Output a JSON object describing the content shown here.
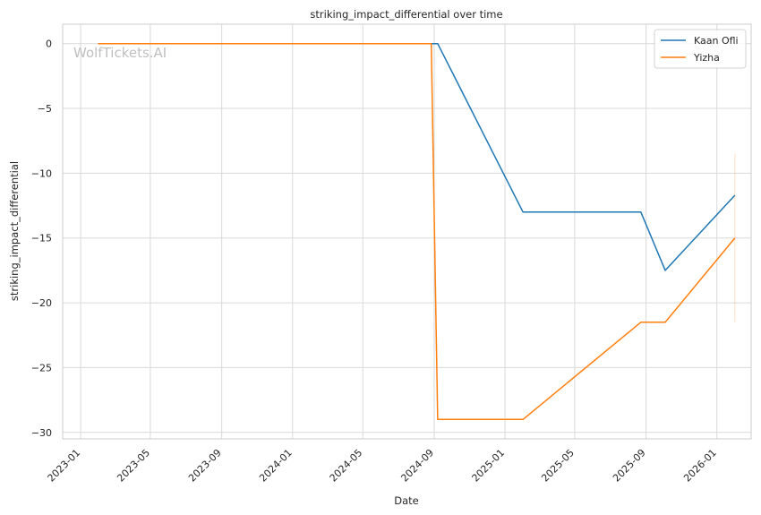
{
  "chart_data": {
    "type": "line",
    "title": "striking_impact_differential over time",
    "xlabel": "Date",
    "ylabel": "striking_impact_differential",
    "xlim": [
      "2022-12-01",
      "2026-03-01"
    ],
    "ylim": [
      -30.5,
      1.5
    ],
    "x_ticks": [
      "2023-01",
      "2023-05",
      "2023-09",
      "2024-01",
      "2024-05",
      "2024-09",
      "2025-01",
      "2025-05",
      "2025-09",
      "2026-01"
    ],
    "y_ticks": [
      0,
      -5,
      -10,
      -15,
      -20,
      -25,
      -30
    ],
    "y_tick_labels": [
      "0",
      "−5",
      "−10",
      "−15",
      "−20",
      "−25",
      "−30"
    ],
    "grid": true,
    "legend_position": "top-right",
    "watermark": "WolfTickets.AI",
    "series": [
      {
        "name": "Kaan Ofli",
        "color": "#1f77b4",
        "points": [
          {
            "x": "2023-01-31",
            "y": 0
          },
          {
            "x": "2024-08-27",
            "y": 0
          },
          {
            "x": "2024-09-07",
            "y": 0
          },
          {
            "x": "2025-02-01",
            "y": -13
          },
          {
            "x": "2025-08-23",
            "y": -13
          },
          {
            "x": "2025-10-04",
            "y": -17.5
          },
          {
            "x": "2026-02-01",
            "y": -11.7
          }
        ]
      },
      {
        "name": "Yizha",
        "color": "#ff7f0e",
        "points": [
          {
            "x": "2023-01-31",
            "y": 0
          },
          {
            "x": "2024-08-27",
            "y": 0
          },
          {
            "x": "2024-09-07",
            "y": -29
          },
          {
            "x": "2025-02-01",
            "y": -29
          },
          {
            "x": "2025-08-23",
            "y": -21.5
          },
          {
            "x": "2025-10-04",
            "y": -21.5
          },
          {
            "x": "2026-02-01",
            "y": -15
          }
        ],
        "error_band": {
          "x": "2026-02-01",
          "low": -21.5,
          "high": -8.5
        }
      }
    ]
  }
}
